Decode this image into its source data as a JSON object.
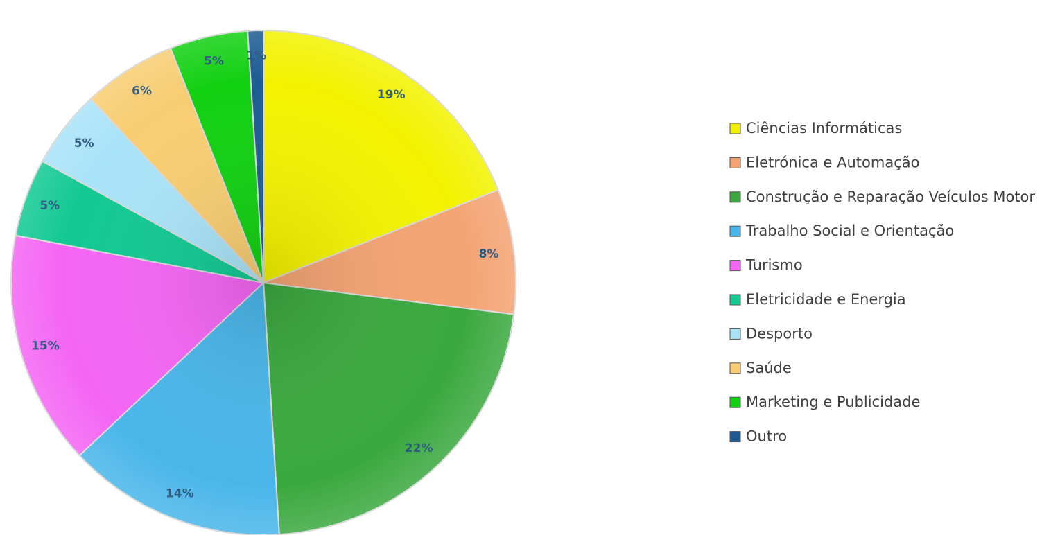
{
  "chart_data": {
    "type": "pie",
    "categories": [
      "Ciências Informáticas",
      "Eletrónica e Automação",
      "Construção e Reparação Veículos Motor",
      "Trabalho Social e Orientação",
      "Turismo",
      "Eletricidade e Energia",
      "Desporto",
      "Saúde",
      "Marketing e Publicidade",
      "Outro"
    ],
    "values": [
      19,
      8,
      22,
      14,
      15,
      5,
      5,
      6,
      5,
      1
    ],
    "value_labels": [
      "19%",
      "8%",
      "22%",
      "14%",
      "15%",
      "5%",
      "5%",
      "6%",
      "5%",
      "1%"
    ],
    "colors": [
      "#f2f200",
      "#f4a373",
      "#3aa83e",
      "#49b6ea",
      "#f465f4",
      "#12c992",
      "#a9e3f8",
      "#f8cd72",
      "#12d012",
      "#1d5c92"
    ],
    "legend": "right"
  }
}
